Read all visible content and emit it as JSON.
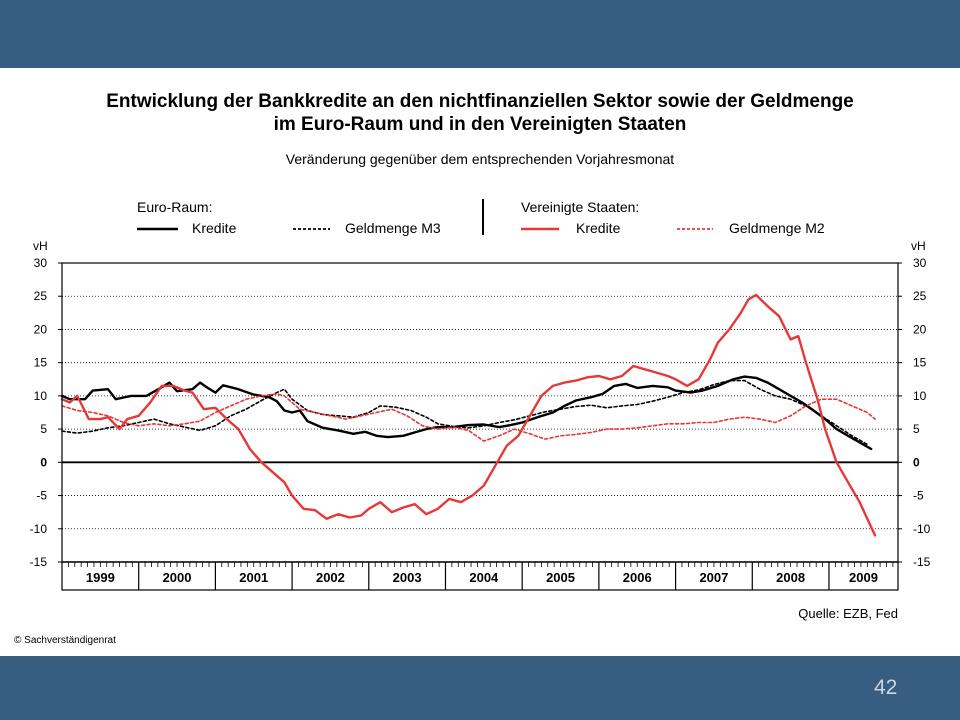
{
  "slide": {
    "page_number": "42"
  },
  "chart_data": {
    "type": "line",
    "title": "Entwicklung der Bankkredite an den nichtfinanziellen Sektor sowie der Geldmenge im Euro-Raum und in den Vereinigten Staaten",
    "title_lines": [
      "Entwicklung der Bankkredite an den nichtfinanziellen Sektor sowie der Geldmenge",
      "im Euro-Raum und in den Vereinigten Staaten"
    ],
    "subtitle": "Veränderung gegenüber dem entsprechenden Vorjahresmonat",
    "ylabel": "vH",
    "ylim": [
      -15,
      30
    ],
    "yticks": [
      -15,
      -10,
      -5,
      0,
      5,
      10,
      15,
      20,
      25,
      30
    ],
    "xlim": [
      1999.0,
      2009.9
    ],
    "year_labels": [
      "1999",
      "2000",
      "2001",
      "2002",
      "2003",
      "2004",
      "2005",
      "2006",
      "2007",
      "2008",
      "2009"
    ],
    "grid": true,
    "legend": {
      "groups": [
        {
          "title": "Euro-Raum:",
          "items": [
            "Kredite",
            "Geldmenge M3"
          ]
        },
        {
          "title": "Vereinigte Staaten:",
          "items": [
            "Kredite",
            "Geldmenge M2"
          ]
        }
      ]
    },
    "series": [
      {
        "name": "Euro-Raum Kredite",
        "color": "#000000",
        "style": "solid",
        "points": [
          [
            1999.0,
            10
          ],
          [
            1999.1,
            9.5
          ],
          [
            1999.3,
            9.5
          ],
          [
            1999.4,
            10.8
          ],
          [
            1999.6,
            11
          ],
          [
            1999.7,
            9.5
          ],
          [
            1999.9,
            10
          ],
          [
            2000.1,
            10
          ],
          [
            2000.3,
            11.3
          ],
          [
            2000.4,
            12
          ],
          [
            2000.5,
            10.7
          ],
          [
            2000.7,
            11
          ],
          [
            2000.8,
            12
          ],
          [
            2000.9,
            11.2
          ],
          [
            2001.0,
            10.5
          ],
          [
            2001.1,
            11.6
          ],
          [
            2001.3,
            11
          ],
          [
            2001.5,
            10.2
          ],
          [
            2001.7,
            9.8
          ],
          [
            2001.8,
            9.2
          ],
          [
            2001.9,
            7.8
          ],
          [
            2002.0,
            7.5
          ],
          [
            2002.1,
            7.8
          ],
          [
            2002.2,
            6.2
          ],
          [
            2002.4,
            5.2
          ],
          [
            2002.6,
            4.8
          ],
          [
            2002.8,
            4.3
          ],
          [
            2002.95,
            4.6
          ],
          [
            2003.1,
            4
          ],
          [
            2003.25,
            3.8
          ],
          [
            2003.45,
            4
          ],
          [
            2003.6,
            4.5
          ],
          [
            2003.75,
            5
          ],
          [
            2003.9,
            5.3
          ],
          [
            2004.1,
            5.3
          ],
          [
            2004.3,
            5.6
          ],
          [
            2004.5,
            5.7
          ],
          [
            2004.7,
            5.3
          ],
          [
            2004.85,
            5.6
          ],
          [
            2005.0,
            6
          ],
          [
            2005.2,
            6.8
          ],
          [
            2005.4,
            7.5
          ],
          [
            2005.55,
            8.5
          ],
          [
            2005.7,
            9.3
          ],
          [
            2005.9,
            9.8
          ],
          [
            2006.05,
            10.3
          ],
          [
            2006.2,
            11.5
          ],
          [
            2006.35,
            11.8
          ],
          [
            2006.5,
            11.2
          ],
          [
            2006.7,
            11.5
          ],
          [
            2006.9,
            11.3
          ],
          [
            2007.0,
            10.8
          ],
          [
            2007.2,
            10.5
          ],
          [
            2007.35,
            10.8
          ],
          [
            2007.55,
            11.5
          ],
          [
            2007.75,
            12.5
          ],
          [
            2007.9,
            12.9
          ],
          [
            2008.05,
            12.7
          ],
          [
            2008.2,
            12
          ],
          [
            2008.35,
            11
          ],
          [
            2008.5,
            10
          ],
          [
            2008.65,
            9
          ],
          [
            2008.8,
            7.8
          ],
          [
            2008.95,
            6.5
          ],
          [
            2009.1,
            5
          ],
          [
            2009.25,
            4
          ],
          [
            2009.4,
            3
          ],
          [
            2009.55,
            2
          ]
        ]
      },
      {
        "name": "Euro-Raum Geldmenge M3",
        "color": "#000000",
        "style": "dotted",
        "points": [
          [
            1999.0,
            4.7
          ],
          [
            1999.2,
            4.4
          ],
          [
            1999.4,
            4.7
          ],
          [
            1999.6,
            5.2
          ],
          [
            1999.8,
            5.5
          ],
          [
            2000.0,
            6
          ],
          [
            2000.2,
            6.5
          ],
          [
            2000.4,
            5.8
          ],
          [
            2000.6,
            5.3
          ],
          [
            2000.8,
            4.8
          ],
          [
            2001.0,
            5.5
          ],
          [
            2001.2,
            7
          ],
          [
            2001.4,
            8
          ],
          [
            2001.6,
            9.3
          ],
          [
            2001.8,
            10.5
          ],
          [
            2001.9,
            11
          ],
          [
            2002.0,
            9.5
          ],
          [
            2002.2,
            7.8
          ],
          [
            2002.4,
            7.2
          ],
          [
            2002.6,
            7
          ],
          [
            2002.8,
            6.8
          ],
          [
            2003.0,
            7.5
          ],
          [
            2003.15,
            8.5
          ],
          [
            2003.35,
            8.3
          ],
          [
            2003.55,
            7.8
          ],
          [
            2003.75,
            6.8
          ],
          [
            2003.9,
            5.8
          ],
          [
            2004.1,
            5.4
          ],
          [
            2004.3,
            5.2
          ],
          [
            2004.5,
            5.5
          ],
          [
            2004.7,
            6
          ],
          [
            2004.9,
            6.4
          ],
          [
            2005.1,
            7
          ],
          [
            2005.3,
            7.6
          ],
          [
            2005.5,
            8
          ],
          [
            2005.7,
            8.4
          ],
          [
            2005.9,
            8.6
          ],
          [
            2006.1,
            8.2
          ],
          [
            2006.3,
            8.5
          ],
          [
            2006.5,
            8.7
          ],
          [
            2006.7,
            9.2
          ],
          [
            2006.9,
            9.8
          ],
          [
            2007.1,
            10.5
          ],
          [
            2007.3,
            10.9
          ],
          [
            2007.5,
            11.7
          ],
          [
            2007.7,
            12.3
          ],
          [
            2007.9,
            12.3
          ],
          [
            2008.1,
            11
          ],
          [
            2008.3,
            10
          ],
          [
            2008.5,
            9.5
          ],
          [
            2008.7,
            8.5
          ],
          [
            2008.9,
            7
          ],
          [
            2009.1,
            5.5
          ],
          [
            2009.3,
            4
          ],
          [
            2009.5,
            2.7
          ]
        ]
      },
      {
        "name": "Vereinigte Staaten Kredite",
        "color": "#e53838",
        "style": "solid",
        "points": [
          [
            1999.0,
            9.5
          ],
          [
            1999.1,
            9
          ],
          [
            1999.2,
            10
          ],
          [
            1999.35,
            6.5
          ],
          [
            1999.5,
            6.5
          ],
          [
            1999.6,
            6.8
          ],
          [
            1999.75,
            5
          ],
          [
            1999.85,
            6.5
          ],
          [
            2000.0,
            7
          ],
          [
            2000.15,
            9
          ],
          [
            2000.3,
            11.5
          ],
          [
            2000.45,
            11.5
          ],
          [
            2000.6,
            10.8
          ],
          [
            2000.7,
            10.5
          ],
          [
            2000.85,
            8
          ],
          [
            2001.0,
            8.2
          ],
          [
            2001.15,
            6.5
          ],
          [
            2001.3,
            5
          ],
          [
            2001.45,
            2
          ],
          [
            2001.6,
            0
          ],
          [
            2001.75,
            -1.5
          ],
          [
            2001.9,
            -3
          ],
          [
            2002.0,
            -5
          ],
          [
            2002.15,
            -7
          ],
          [
            2002.3,
            -7.2
          ],
          [
            2002.45,
            -8.5
          ],
          [
            2002.6,
            -7.8
          ],
          [
            2002.75,
            -8.3
          ],
          [
            2002.9,
            -8
          ],
          [
            2003.0,
            -7
          ],
          [
            2003.15,
            -6
          ],
          [
            2003.3,
            -7.5
          ],
          [
            2003.45,
            -6.8
          ],
          [
            2003.6,
            -6.3
          ],
          [
            2003.75,
            -7.8
          ],
          [
            2003.9,
            -7
          ],
          [
            2004.05,
            -5.5
          ],
          [
            2004.2,
            -6
          ],
          [
            2004.35,
            -5
          ],
          [
            2004.5,
            -3.5
          ],
          [
            2004.65,
            -0.5
          ],
          [
            2004.8,
            2.5
          ],
          [
            2004.95,
            4
          ],
          [
            2005.1,
            7
          ],
          [
            2005.25,
            10
          ],
          [
            2005.4,
            11.5
          ],
          [
            2005.55,
            12
          ],
          [
            2005.7,
            12.3
          ],
          [
            2005.85,
            12.8
          ],
          [
            2006.0,
            13
          ],
          [
            2006.15,
            12.5
          ],
          [
            2006.3,
            13
          ],
          [
            2006.45,
            14.5
          ],
          [
            2006.6,
            14
          ],
          [
            2006.75,
            13.5
          ],
          [
            2006.9,
            13
          ],
          [
            2007.0,
            12.5
          ],
          [
            2007.15,
            11.5
          ],
          [
            2007.3,
            12.5
          ],
          [
            2007.45,
            15.5
          ],
          [
            2007.55,
            18
          ],
          [
            2007.7,
            20
          ],
          [
            2007.85,
            22.5
          ],
          [
            2007.95,
            24.5
          ],
          [
            2008.05,
            25.2
          ],
          [
            2008.2,
            23.5
          ],
          [
            2008.35,
            22
          ],
          [
            2008.5,
            18.5
          ],
          [
            2008.6,
            19
          ],
          [
            2008.7,
            15
          ],
          [
            2008.85,
            9.5
          ],
          [
            2008.95,
            5
          ],
          [
            2009.1,
            0
          ],
          [
            2009.25,
            -3
          ],
          [
            2009.4,
            -6
          ],
          [
            2009.5,
            -8.5
          ],
          [
            2009.6,
            -11
          ]
        ]
      },
      {
        "name": "Vereinigte Staaten Geldmenge M2",
        "color": "#e53838",
        "style": "dotted",
        "points": [
          [
            1999.0,
            8.5
          ],
          [
            1999.2,
            7.8
          ],
          [
            1999.4,
            7.5
          ],
          [
            1999.6,
            7
          ],
          [
            1999.8,
            6
          ],
          [
            2000.0,
            5.5
          ],
          [
            2000.2,
            5.8
          ],
          [
            2000.4,
            5.5
          ],
          [
            2000.6,
            5.8
          ],
          [
            2000.8,
            6.2
          ],
          [
            2001.0,
            7.5
          ],
          [
            2001.2,
            8.5
          ],
          [
            2001.4,
            9.5
          ],
          [
            2001.6,
            10
          ],
          [
            2001.8,
            10.3
          ],
          [
            2001.9,
            10
          ],
          [
            2002.1,
            8
          ],
          [
            2002.3,
            7.5
          ],
          [
            2002.5,
            7
          ],
          [
            2002.7,
            6.5
          ],
          [
            2002.9,
            7
          ],
          [
            2003.1,
            7.5
          ],
          [
            2003.3,
            8
          ],
          [
            2003.5,
            7
          ],
          [
            2003.7,
            5.5
          ],
          [
            2003.9,
            5
          ],
          [
            2004.1,
            5.3
          ],
          [
            2004.3,
            4.8
          ],
          [
            2004.5,
            3.2
          ],
          [
            2004.7,
            4
          ],
          [
            2004.9,
            5
          ],
          [
            2005.1,
            4.3
          ],
          [
            2005.3,
            3.5
          ],
          [
            2005.5,
            4
          ],
          [
            2005.7,
            4.2
          ],
          [
            2005.9,
            4.5
          ],
          [
            2006.1,
            5
          ],
          [
            2006.3,
            5
          ],
          [
            2006.5,
            5.2
          ],
          [
            2006.7,
            5.5
          ],
          [
            2006.9,
            5.8
          ],
          [
            2007.1,
            5.8
          ],
          [
            2007.3,
            6
          ],
          [
            2007.5,
            6
          ],
          [
            2007.7,
            6.5
          ],
          [
            2007.9,
            6.8
          ],
          [
            2008.1,
            6.5
          ],
          [
            2008.3,
            6
          ],
          [
            2008.5,
            7
          ],
          [
            2008.7,
            8.5
          ],
          [
            2008.9,
            9.5
          ],
          [
            2009.1,
            9.5
          ],
          [
            2009.3,
            8.5
          ],
          [
            2009.5,
            7.5
          ],
          [
            2009.6,
            6.5
          ]
        ]
      }
    ]
  },
  "footer": {
    "source": "Quelle: EZB, Fed",
    "copyright": "© Sachverständigenrat"
  }
}
